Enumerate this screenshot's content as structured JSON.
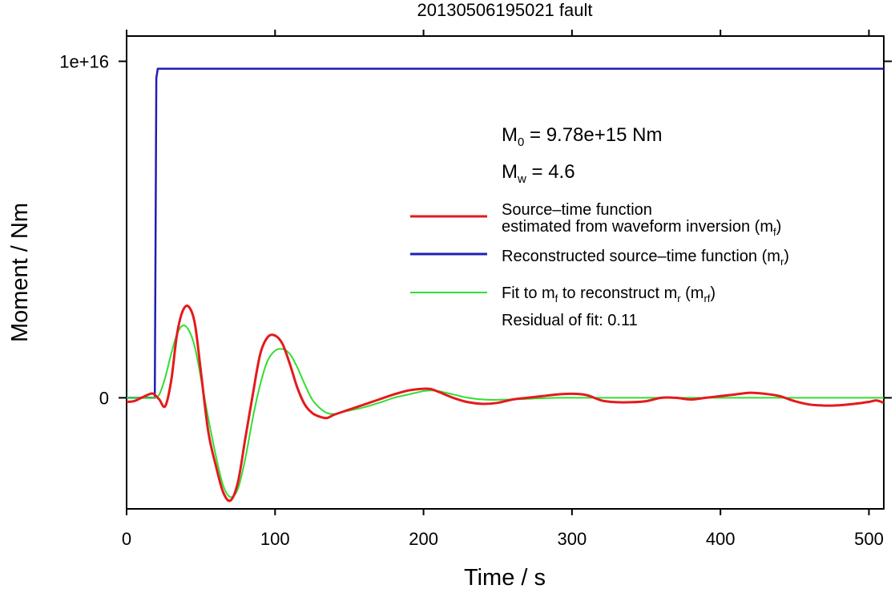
{
  "chart_data": {
    "type": "line",
    "title": "20130506195021 fault",
    "xlabel": "Time / s",
    "ylabel": "Moment / Nm",
    "xlim": [
      0,
      510
    ],
    "ylim": [
      -3300000000000000.0,
      1.075e+16
    ],
    "x_ticks": [
      0,
      100,
      200,
      300,
      400,
      500
    ],
    "x_tick_labels": [
      "0",
      "100",
      "200",
      "300",
      "400",
      "500"
    ],
    "y_ticks": [
      0,
      1e+16
    ],
    "y_tick_labels": [
      "0",
      "1e+16"
    ],
    "grid": false,
    "legend_position": "right, inside plot",
    "annotations": {
      "moment": {
        "sym": "M",
        "sub": "0",
        "text": " = 9.78e+15 Nm"
      },
      "magnitude": {
        "sym": "M",
        "sub": "w",
        "text": " = 4.6"
      },
      "residual": "Residual of fit: 0.11"
    },
    "series": [
      {
        "name": "Source–time function estimated from waveform inversion (mf)",
        "legend_lines": [
          "Source–time function",
          "estimated from waveform inversion (m",
          "f",
          ")"
        ],
        "color": "#e41a1c",
        "x": [
          0,
          5,
          10,
          15,
          18,
          22,
          26,
          30,
          34,
          38,
          42,
          46,
          50,
          55,
          60,
          65,
          70,
          75,
          80,
          85,
          90,
          95,
          100,
          105,
          110,
          115,
          120,
          125,
          130,
          135,
          140,
          150,
          160,
          170,
          180,
          190,
          200,
          205,
          210,
          220,
          230,
          240,
          250,
          260,
          270,
          280,
          290,
          300,
          310,
          320,
          330,
          340,
          350,
          360,
          370,
          380,
          390,
          400,
          410,
          420,
          430,
          440,
          450,
          460,
          470,
          480,
          490,
          500,
          505,
          510
        ],
        "y": [
          -120000000000000.0,
          -100000000000000.0,
          0,
          100000000000000.0,
          120000000000000.0,
          -50000000000000.0,
          -250000000000000.0,
          500000000000000.0,
          1900000000000000.0,
          2600000000000000.0,
          2700000000000000.0,
          2200000000000000.0,
          800000000000000.0,
          -1000000000000000.0,
          -2000000000000000.0,
          -2800000000000000.0,
          -3050000000000000.0,
          -2500000000000000.0,
          -1200000000000000.0,
          100000000000000.0,
          1300000000000000.0,
          1800000000000000.0,
          1850000000000000.0,
          1600000000000000.0,
          1000000000000000.0,
          300000000000000.0,
          -200000000000000.0,
          -450000000000000.0,
          -560000000000000.0,
          -600000000000000.0,
          -500000000000000.0,
          -350000000000000.0,
          -200000000000000.0,
          -50000000000000.0,
          100000000000000.0,
          220000000000000.0,
          270000000000000.0,
          260000000000000.0,
          180000000000000.0,
          0,
          -130000000000000.0,
          -180000000000000.0,
          -150000000000000.0,
          -50000000000000.0,
          0,
          50000000000000.0,
          100000000000000.0,
          120000000000000.0,
          80000000000000.0,
          -80000000000000.0,
          -130000000000000.0,
          -130000000000000.0,
          -100000000000000.0,
          0,
          0,
          -50000000000000.0,
          0,
          50000000000000.0,
          100000000000000.0,
          150000000000000.0,
          120000000000000.0,
          50000000000000.0,
          -100000000000000.0,
          -200000000000000.0,
          -230000000000000.0,
          -220000000000000.0,
          -180000000000000.0,
          -120000000000000.0,
          -80000000000000.0,
          -150000000000000.0
        ]
      },
      {
        "name": "Reconstructed source–time function (mr)",
        "legend_lines": [
          "Reconstructed source–time function (m",
          "r",
          ")"
        ],
        "color": "#1f1fb5",
        "x": [
          0,
          17,
          19,
          20,
          21,
          510
        ],
        "y": [
          0,
          0,
          0,
          9500000000000000.0,
          9780000000000000.0,
          9780000000000000.0
        ]
      },
      {
        "name": "Fit to mf to reconstruct mr (mrf)",
        "legend_lines": [
          "Fit to m",
          "f",
          " to reconstruct m",
          "r",
          " (m",
          "rf",
          ")"
        ],
        "color": "#33dd33",
        "x": [
          0,
          10,
          18,
          22,
          26,
          30,
          34,
          38,
          42,
          46,
          50,
          55,
          60,
          65,
          70,
          75,
          80,
          85,
          90,
          95,
          100,
          105,
          110,
          115,
          120,
          125,
          130,
          135,
          140,
          145,
          150,
          160,
          170,
          180,
          190,
          200,
          205,
          210,
          220,
          230,
          240,
          250,
          270,
          290,
          310,
          330,
          350,
          400,
          450,
          510
        ],
        "y": [
          0,
          0,
          0,
          100000000000000.0,
          600000000000000.0,
          1300000000000000.0,
          1900000000000000.0,
          2150000000000000.0,
          2000000000000000.0,
          1500000000000000.0,
          600000000000000.0,
          -600000000000000.0,
          -1700000000000000.0,
          -2600000000000000.0,
          -2950000000000000.0,
          -2700000000000000.0,
          -1800000000000000.0,
          -600000000000000.0,
          400000000000000.0,
          1100000000000000.0,
          1400000000000000.0,
          1450000000000000.0,
          1300000000000000.0,
          900000000000000.0,
          400000000000000.0,
          -50000000000000.0,
          -300000000000000.0,
          -450000000000000.0,
          -480000000000000.0,
          -420000000000000.0,
          -380000000000000.0,
          -280000000000000.0,
          -150000000000000.0,
          0,
          100000000000000.0,
          200000000000000.0,
          220000000000000.0,
          200000000000000.0,
          100000000000000.0,
          0,
          -50000000000000.0,
          -60000000000000.0,
          -30000000000000.0,
          0,
          0,
          0,
          0,
          0,
          0,
          0
        ]
      }
    ]
  }
}
